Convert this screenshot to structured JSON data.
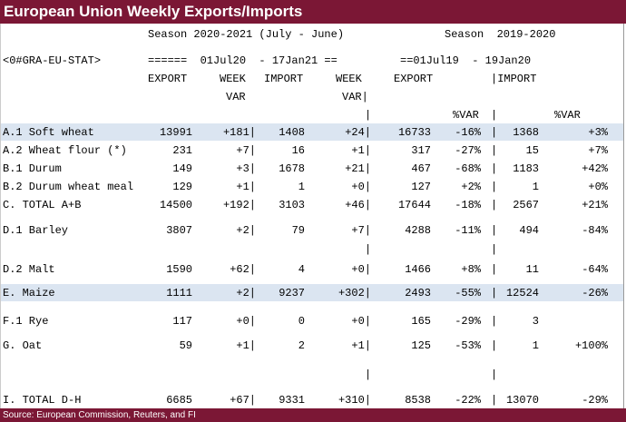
{
  "title": "European Union Weekly Exports/Imports",
  "footer": "Source: European Commission, Reuters, and FI",
  "header": {
    "season_current": "Season 2020-2021 (July - June)",
    "season_prior": "Season  2019-2020",
    "ric": "<0#GRA-EU-STAT>",
    "range_current": "======  01Jul20  - 17Jan21 ==",
    "range_prior": "==01Jul19  - 19Jan20",
    "col_export": "EXPORT",
    "col_week": "WEEK",
    "col_import": "IMPORT",
    "col_week2": "WEEK",
    "col_export_prior": "EXPORT",
    "col_import_prior": "|IMPORT",
    "col_var": "VAR",
    "col_var2": "VAR|",
    "pct_var": "%VAR",
    "pct_var2": "%VAR"
  },
  "rows": [
    {
      "label": "A.1 Soft wheat",
      "export": "13991",
      "week_var": "+181|",
      "import": "1408",
      "week_var2": "+24|",
      "export_prior": "16733",
      "pct_export": "-16%",
      "import_prior": "1368",
      "pct_import": "+3%"
    },
    {
      "label": "A.2 Wheat flour (*)",
      "export": "231",
      "week_var": "+7|",
      "import": "16",
      "week_var2": "+1|",
      "export_prior": "317",
      "pct_export": "-27%",
      "import_prior": "15",
      "pct_import": "+7%"
    },
    {
      "label": "B.1 Durum",
      "export": "149",
      "week_var": "+3|",
      "import": "1678",
      "week_var2": "+21|",
      "export_prior": "467",
      "pct_export": "-68%",
      "import_prior": "1183",
      "pct_import": "+42%"
    },
    {
      "label": "B.2 Durum wheat meal",
      "export": "129",
      "week_var": "+1|",
      "import": "1",
      "week_var2": "+0|",
      "export_prior": "127",
      "pct_export": "+2%",
      "import_prior": "1",
      "pct_import": "+0%"
    },
    {
      "label": "C. TOTAL A+B",
      "export": "14500",
      "week_var": "+192|",
      "import": "3103",
      "week_var2": "+46|",
      "export_prior": "17644",
      "pct_export": "-18%",
      "import_prior": "2567",
      "pct_import": "+21%"
    },
    {
      "label": "D.1 Barley",
      "export": "3807",
      "week_var": "+2|",
      "import": "79",
      "week_var2": "+7|",
      "export_prior": "4288",
      "pct_export": "-11%",
      "import_prior": "494",
      "pct_import": "-84%"
    },
    {
      "label": "D.2 Malt",
      "export": "1590",
      "week_var": "+62|",
      "import": "4",
      "week_var2": "+0|",
      "export_prior": "1466",
      "pct_export": "+8%",
      "import_prior": "11",
      "pct_import": "-64%"
    },
    {
      "label": "E. Maize",
      "export": "1111",
      "week_var": "+2|",
      "import": "9237",
      "week_var2": "+302|",
      "export_prior": "2493",
      "pct_export": "-55%",
      "import_prior": "12524",
      "pct_import": "-26%"
    },
    {
      "label": "F.1 Rye",
      "export": "117",
      "week_var": "+0|",
      "import": "0",
      "week_var2": "+0|",
      "export_prior": "165",
      "pct_export": "-29%",
      "import_prior": "3",
      "pct_import": ""
    },
    {
      "label": "G. Oat",
      "export": "59",
      "week_var": "+1|",
      "import": "2",
      "week_var2": "+1|",
      "export_prior": "125",
      "pct_export": "-53%",
      "import_prior": "1",
      "pct_import": "+100%"
    },
    {
      "label": "I. TOTAL D-H",
      "export": "6685",
      "week_var": "+67|",
      "import": "9331",
      "week_var2": "+310|",
      "export_prior": "8538",
      "pct_export": "-22%",
      "import_prior": "13070",
      "pct_import": "-29%"
    }
  ],
  "colors": {
    "brand": "#7b1735",
    "highlight": "#dbe5f1"
  }
}
